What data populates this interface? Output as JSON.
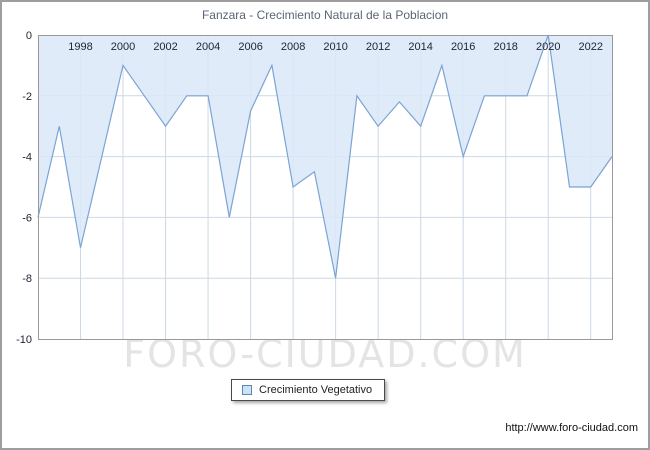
{
  "header": {
    "title": "Fanzara - Crecimiento Natural de la Poblacion"
  },
  "watermark": "FORO-CIUDAD.COM",
  "legend": {
    "label": "Crecimiento Vegetativo"
  },
  "footer": {
    "url": "http://www.foro-ciudad.com"
  },
  "chart_data": {
    "type": "area",
    "title": "Fanzara - Crecimiento Natural de la Poblacion",
    "series_name": "Crecimiento Vegetativo",
    "x": [
      1996,
      1997,
      1998,
      1999,
      2000,
      2001,
      2002,
      2003,
      2004,
      2005,
      2006,
      2007,
      2008,
      2009,
      2010,
      2011,
      2012,
      2013,
      2014,
      2015,
      2016,
      2017,
      2018,
      2019,
      2020,
      2021,
      2022,
      2023
    ],
    "values": [
      -6,
      -3,
      -7,
      -4,
      -1,
      -2,
      -3,
      -2,
      -2,
      -6,
      -2.5,
      -1,
      -5,
      -4.5,
      -8,
      -2,
      -3,
      -2.2,
      -3,
      -1,
      -4,
      -2,
      -2,
      -2,
      0,
      -5,
      -5,
      -4
    ],
    "ylim": [
      -10,
      0
    ],
    "xticks": [
      1998,
      2000,
      2002,
      2004,
      2006,
      2008,
      2010,
      2012,
      2014,
      2016,
      2018,
      2020,
      2022
    ],
    "yticks": [
      0,
      -2,
      -4,
      -6,
      -8,
      -10
    ],
    "ygrid": [
      -2,
      -4,
      -6,
      -8
    ],
    "grid": true,
    "legend_position": "bottom",
    "xlabel": "",
    "ylabel": "",
    "colors": {
      "area": "#d9e8f8",
      "line": "#7ba3d4",
      "grid": "#ccd9e6",
      "plot_border": "#999999",
      "tick_text": "#1f2430"
    }
  }
}
